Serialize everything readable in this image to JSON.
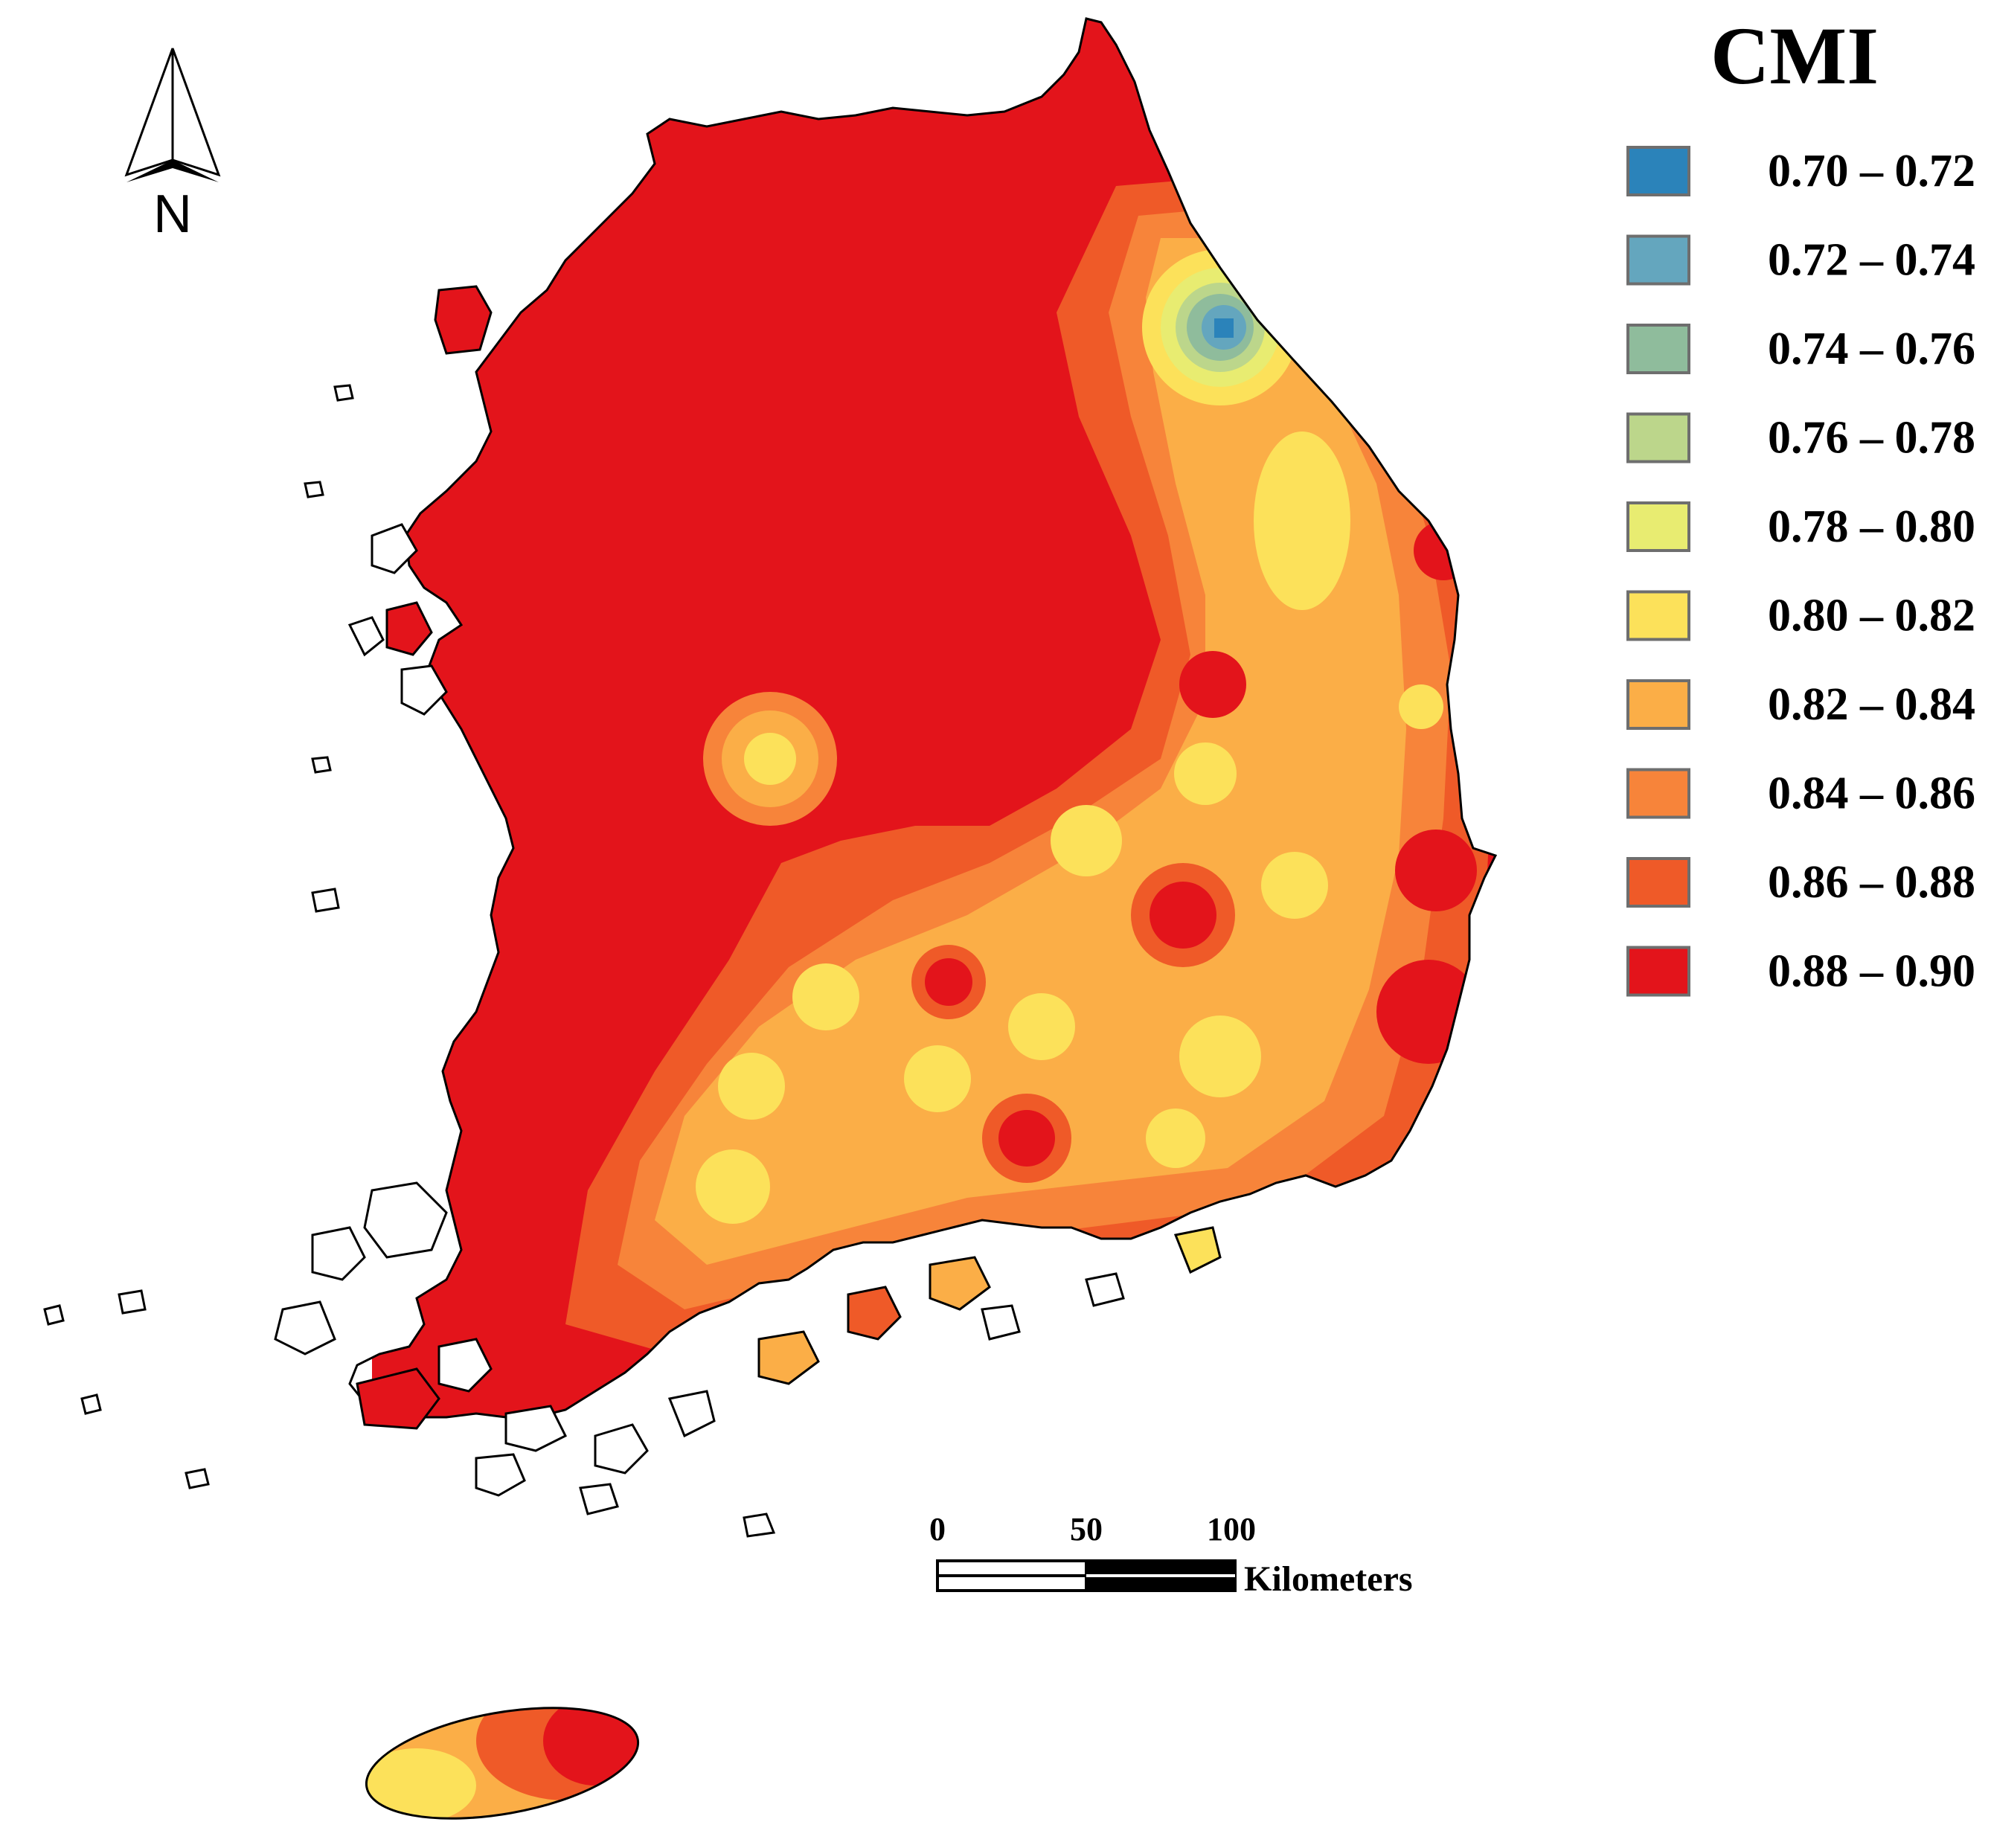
{
  "legend": {
    "title": "CMI",
    "classes": [
      {
        "label": "0.70 – 0.72",
        "color": "#2b83ba"
      },
      {
        "label": "0.72 – 0.74",
        "color": "#64a6be"
      },
      {
        "label": "0.74 – 0.76",
        "color": "#8fbc9c"
      },
      {
        "label": "0.76 – 0.78",
        "color": "#bcd68b"
      },
      {
        "label": "0.78 – 0.80",
        "color": "#e8ec71"
      },
      {
        "label": "0.80 – 0.82",
        "color": "#fce15a"
      },
      {
        "label": "0.82 – 0.84",
        "color": "#fbae47"
      },
      {
        "label": "0.84 – 0.86",
        "color": "#f7843a"
      },
      {
        "label": "0.86 – 0.88",
        "color": "#ef5a28"
      },
      {
        "label": "0.88 – 0.90",
        "color": "#e3141b"
      }
    ]
  },
  "north_arrow": {
    "letter": "N"
  },
  "scale_bar": {
    "ticks": [
      "0",
      "50",
      "100"
    ],
    "unit": "Kilometers"
  }
}
